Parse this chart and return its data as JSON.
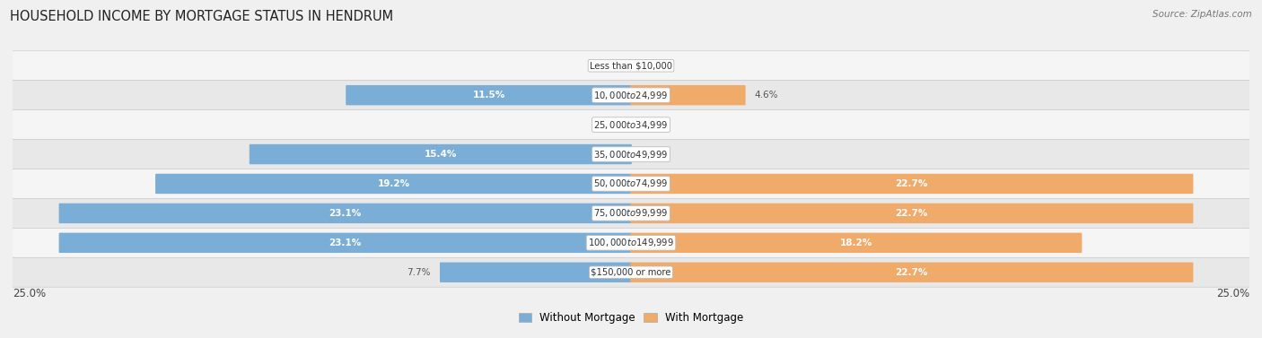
{
  "title": "HOUSEHOLD INCOME BY MORTGAGE STATUS IN HENDRUM",
  "source": "Source: ZipAtlas.com",
  "categories": [
    "Less than $10,000",
    "$10,000 to $24,999",
    "$25,000 to $34,999",
    "$35,000 to $49,999",
    "$50,000 to $74,999",
    "$75,000 to $99,999",
    "$100,000 to $149,999",
    "$150,000 or more"
  ],
  "without_mortgage": [
    0.0,
    11.5,
    0.0,
    15.4,
    19.2,
    23.1,
    23.1,
    7.7
  ],
  "with_mortgage": [
    0.0,
    4.6,
    0.0,
    0.0,
    22.7,
    22.7,
    18.2,
    22.7
  ],
  "color_without": "#7aaed6",
  "color_with": "#f0aa6a",
  "axis_max": 25.0,
  "fig_bg": "#f0f0f0",
  "row_bg_light": "#f5f5f5",
  "row_bg_dark": "#e8e8e8",
  "legend_label_without": "Without Mortgage",
  "legend_label_with": "With Mortgage",
  "label_outside_color": "#555555",
  "label_inside_color": "white"
}
